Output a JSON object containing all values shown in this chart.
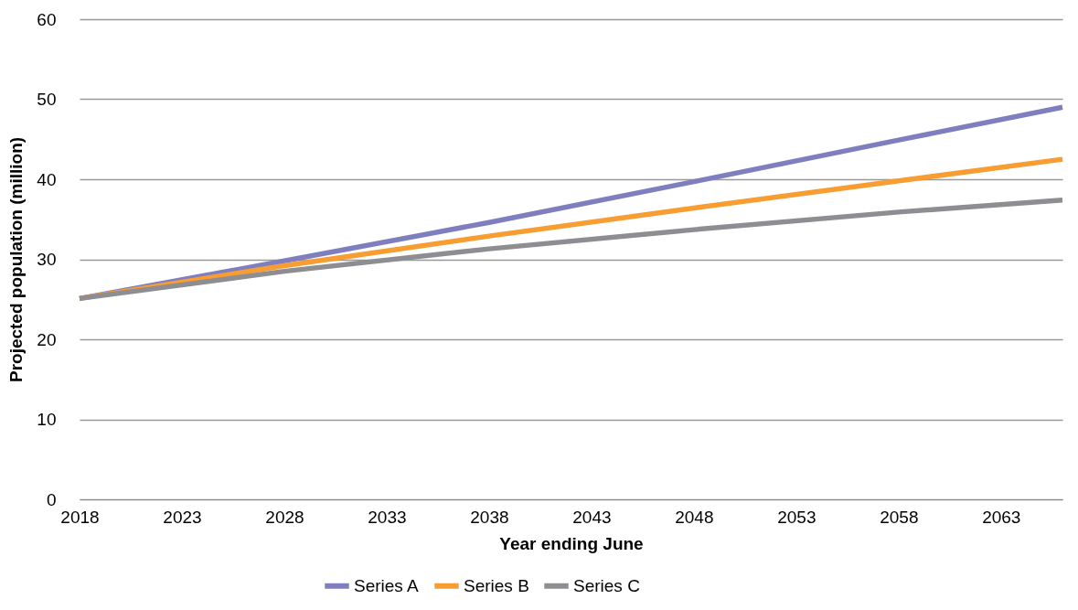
{
  "chart_data": {
    "type": "line",
    "xlabel": "Year ending June",
    "ylabel": "Projected population (million)",
    "x": [
      2018,
      2028,
      2038,
      2048,
      2058,
      2066
    ],
    "series": [
      {
        "name": "Series A",
        "color": "#7f7fbf",
        "values": [
          25.1,
          29.8,
          34.6,
          39.7,
          44.9,
          49.0
        ]
      },
      {
        "name": "Series B",
        "color": "#f79d32",
        "values": [
          25.1,
          29.2,
          32.9,
          36.4,
          39.8,
          42.5
        ]
      },
      {
        "name": "Series C",
        "color": "#8e8d92",
        "values": [
          25.1,
          28.5,
          31.3,
          33.7,
          35.9,
          37.4
        ]
      }
    ],
    "xlim": [
      2018,
      2066
    ],
    "xticks": [
      2018,
      2023,
      2028,
      2033,
      2038,
      2043,
      2048,
      2053,
      2058,
      2063
    ],
    "ylim": [
      0,
      60
    ],
    "yticks": [
      0,
      10,
      20,
      30,
      40,
      50,
      60
    ],
    "grid": "y",
    "legend": "bottom",
    "marker": "none",
    "line_style": "solid"
  }
}
